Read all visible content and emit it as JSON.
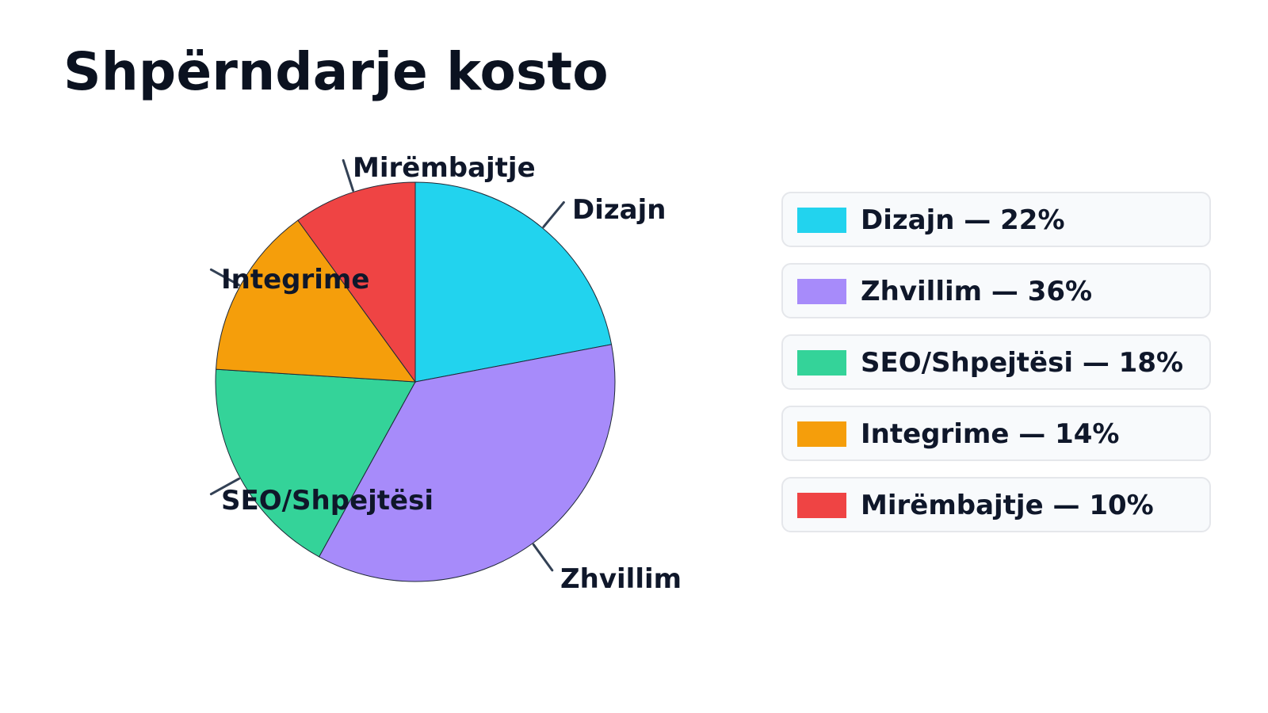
{
  "page": {
    "title": "Shpërndarje kosto"
  },
  "chart_data": {
    "type": "pie",
    "title": "Shpërndarje kosto",
    "unit": "%",
    "slices": [
      {
        "label": "Dizajn",
        "value": 22,
        "color": "#22d3ee"
      },
      {
        "label": "Zhvillim",
        "value": 36,
        "color": "#a78bfa"
      },
      {
        "label": "SEO/Shpejtësi",
        "value": 18,
        "color": "#34d399"
      },
      {
        "label": "Integrime",
        "value": 14,
        "color": "#f59e0b"
      },
      {
        "label": "Mirëmbajtje",
        "value": 10,
        "color": "#ef4444"
      }
    ],
    "legend": {
      "position": "right",
      "items": [
        {
          "text": "Dizajn — 22%",
          "color": "#22d3ee"
        },
        {
          "text": "Zhvillim — 36%",
          "color": "#a78bfa"
        },
        {
          "text": "SEO/Shpejtësi — 18%",
          "color": "#34d399"
        },
        {
          "text": "Integrime — 14%",
          "color": "#f59e0b"
        },
        {
          "text": "Mirëmbajtje — 10%",
          "color": "#ef4444"
        }
      ]
    }
  }
}
